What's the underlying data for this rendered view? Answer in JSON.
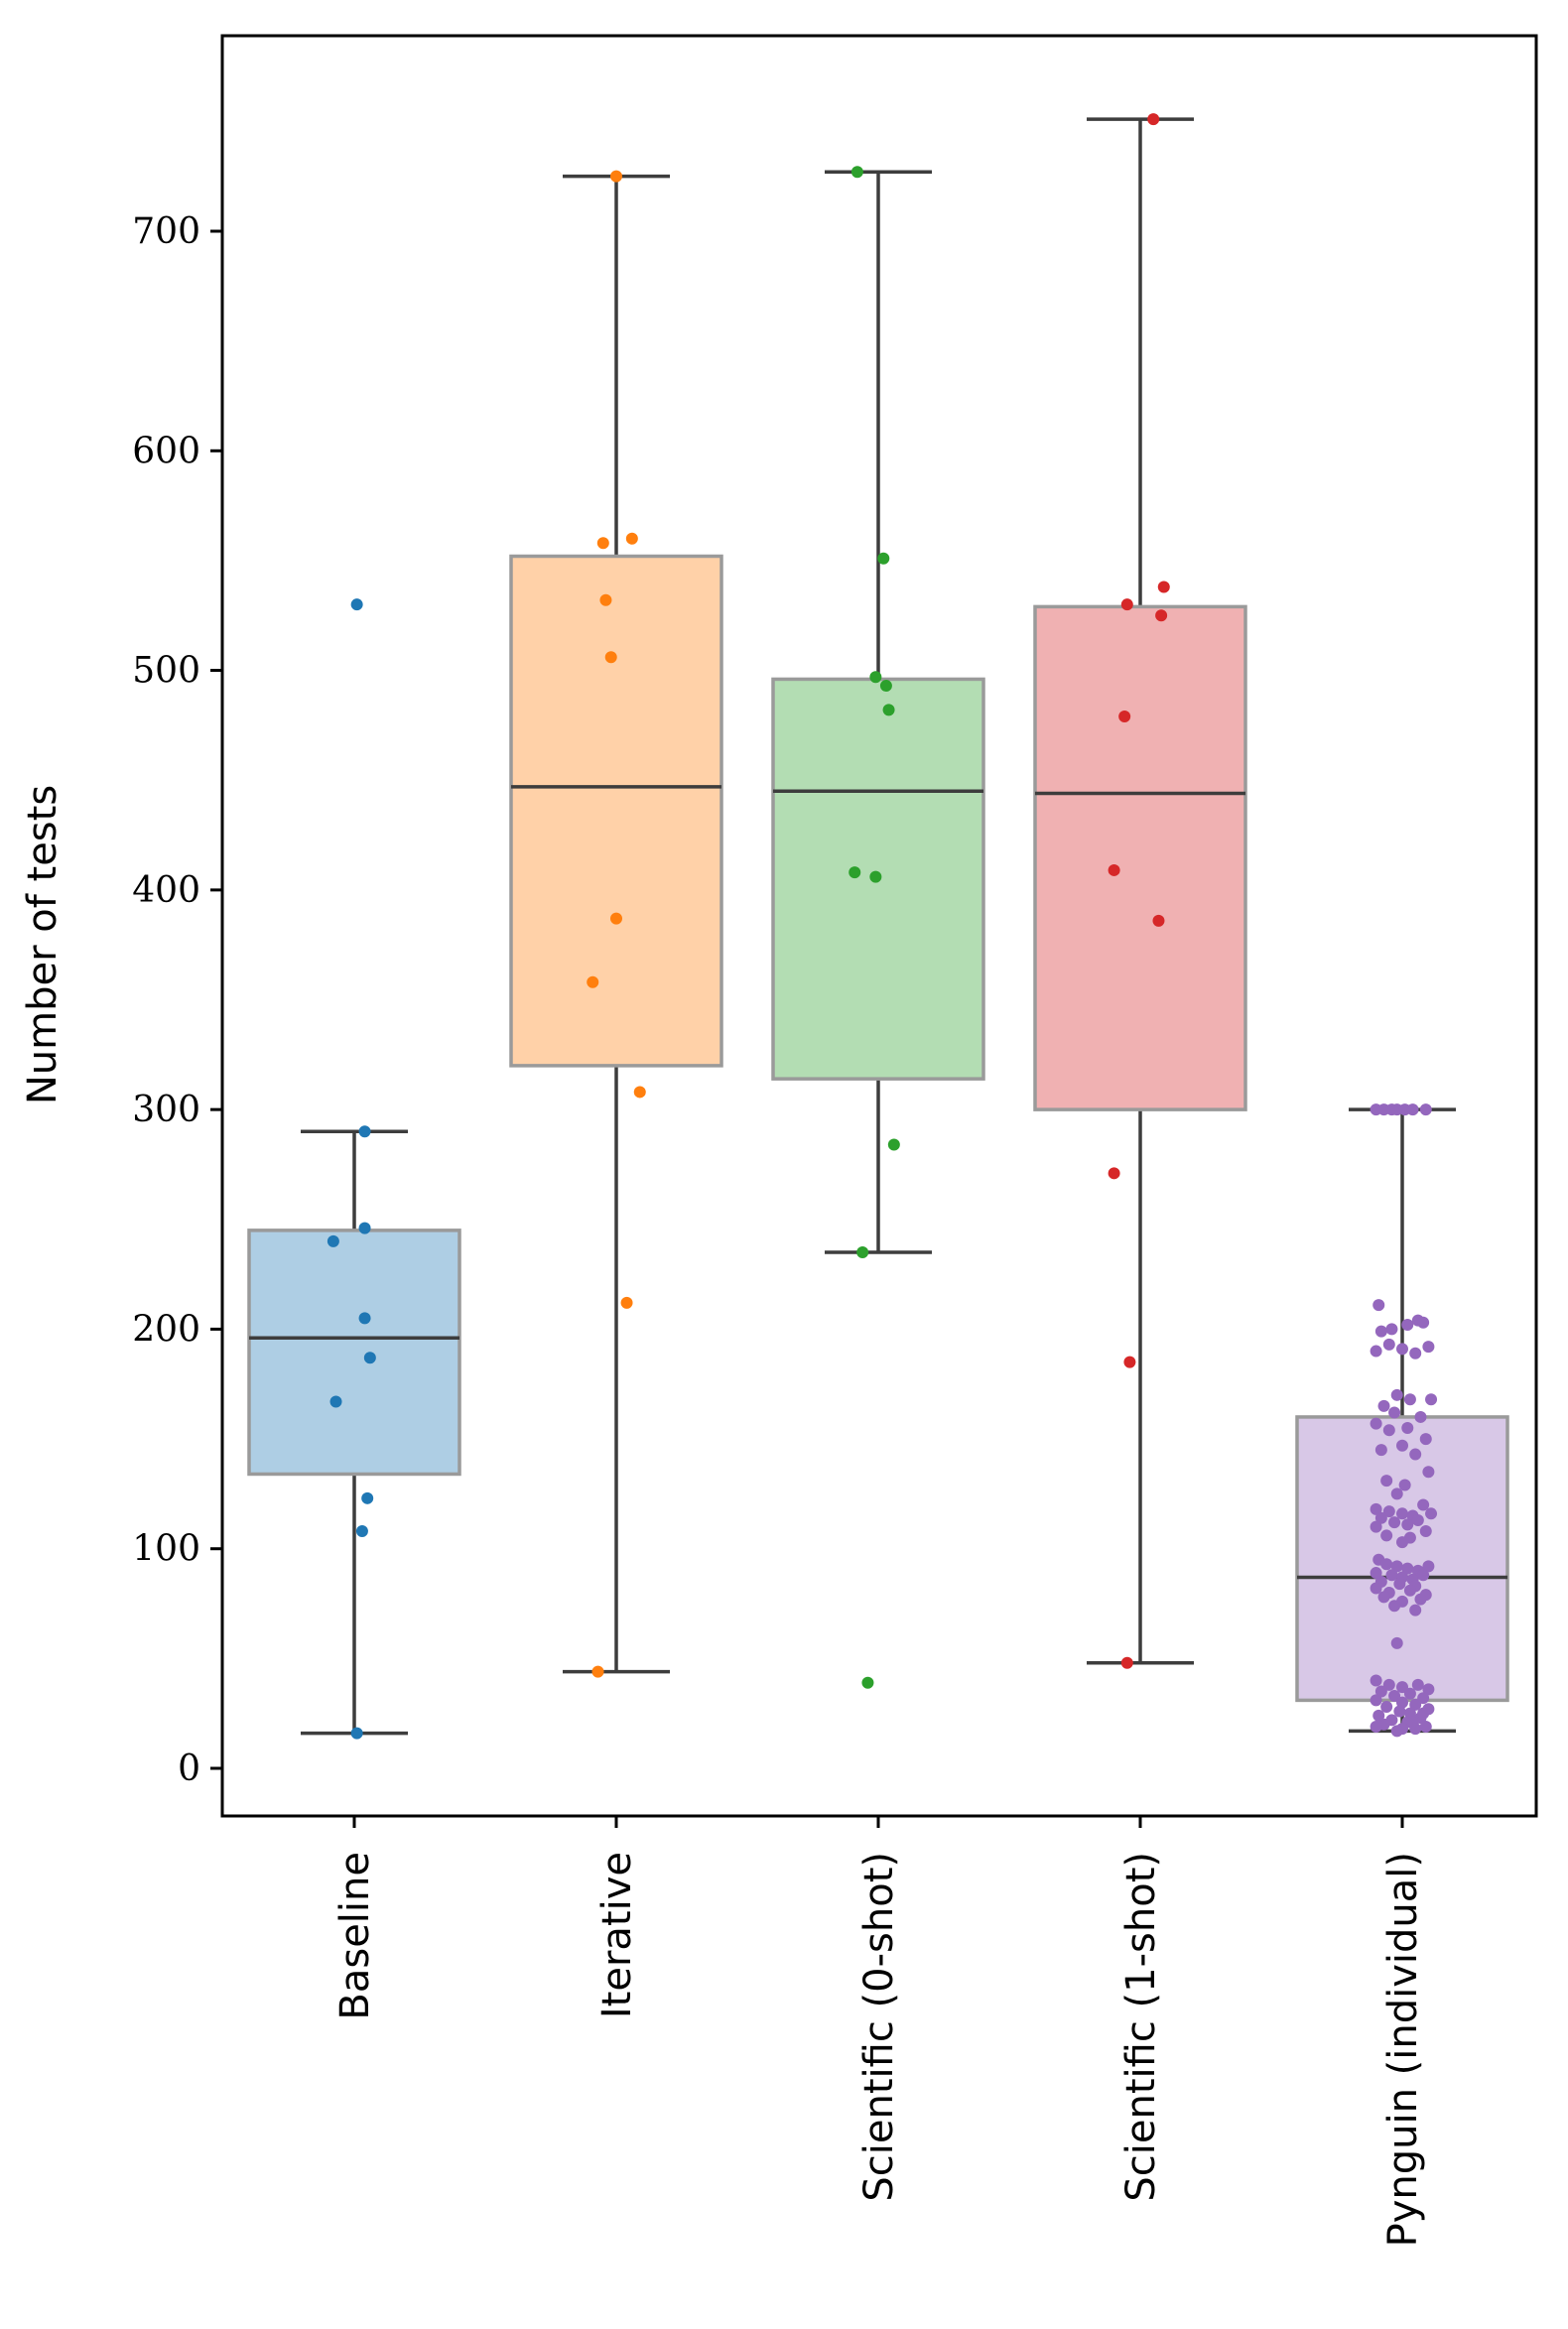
{
  "chart_data": {
    "type": "box",
    "title": "",
    "xlabel": "",
    "ylabel": "Number of tests",
    "ylim": [
      -20,
      790
    ],
    "yticks": [
      0,
      100,
      200,
      300,
      400,
      500,
      600,
      700
    ],
    "categories": [
      "Baseline",
      "Iterative",
      "Scientific (0-shot)",
      "Scientific (1-shot)",
      "Pynguin (individual)"
    ],
    "series": [
      {
        "name": "Baseline",
        "color": "#1f77b4",
        "whisker_low": 16,
        "q1": 134,
        "median": 196,
        "q3": 245,
        "whisker_high": 290,
        "points": [
          [
            0.01,
            530
          ],
          [
            0.04,
            290
          ],
          [
            -0.08,
            240
          ],
          [
            0.04,
            246
          ],
          [
            0.04,
            205
          ],
          [
            0.06,
            187
          ],
          [
            -0.07,
            167
          ],
          [
            0.05,
            123
          ],
          [
            0.03,
            108
          ],
          [
            0.01,
            16
          ]
        ]
      },
      {
        "name": "Iterative",
        "color": "#ff7f0e",
        "whisker_low": 44,
        "q1": 320,
        "median": 447,
        "q3": 552,
        "whisker_high": 725,
        "points": [
          [
            0.0,
            725
          ],
          [
            0.06,
            560
          ],
          [
            -0.05,
            558
          ],
          [
            -0.04,
            532
          ],
          [
            -0.02,
            506
          ],
          [
            0.0,
            387
          ],
          [
            -0.09,
            358
          ],
          [
            0.09,
            308
          ],
          [
            0.04,
            212
          ],
          [
            -0.07,
            44
          ]
        ]
      },
      {
        "name": "Scientific (0-shot)",
        "color": "#2ca02c",
        "whisker_low": 235,
        "q1": 314,
        "median": 445,
        "q3": 496,
        "whisker_high": 727,
        "points": [
          [
            -0.08,
            727
          ],
          [
            0.02,
            551
          ],
          [
            -0.01,
            497
          ],
          [
            0.03,
            493
          ],
          [
            0.04,
            482
          ],
          [
            -0.09,
            408
          ],
          [
            -0.01,
            406
          ],
          [
            0.06,
            284
          ],
          [
            -0.06,
            235
          ],
          [
            -0.04,
            39
          ]
        ]
      },
      {
        "name": "Scientific (1-shot)",
        "color": "#d62728",
        "whisker_low": 48,
        "q1": 300,
        "median": 444,
        "q3": 529,
        "whisker_high": 751,
        "points": [
          [
            0.05,
            751
          ],
          [
            0.09,
            538
          ],
          [
            -0.05,
            530
          ],
          [
            0.08,
            525
          ],
          [
            -0.06,
            479
          ],
          [
            -0.1,
            409
          ],
          [
            0.07,
            386
          ],
          [
            -0.1,
            271
          ],
          [
            -0.04,
            185
          ],
          [
            -0.05,
            48
          ]
        ]
      },
      {
        "name": "Pynguin (individual)",
        "color": "#9467bd",
        "whisker_low": 17,
        "q1": 31,
        "median": 87,
        "q3": 160,
        "whisker_high": 300,
        "points": [
          [
            -0.1,
            300
          ],
          [
            -0.07,
            300
          ],
          [
            -0.04,
            300
          ],
          [
            -0.02,
            300
          ],
          [
            0.01,
            300
          ],
          [
            0.04,
            300
          ],
          [
            0.09,
            300
          ],
          [
            -0.09,
            211
          ],
          [
            0.06,
            204
          ],
          [
            0.02,
            202
          ],
          [
            -0.04,
            200
          ],
          [
            0.08,
            203
          ],
          [
            -0.08,
            199
          ],
          [
            -0.05,
            193
          ],
          [
            0.1,
            192
          ],
          [
            0.0,
            191
          ],
          [
            -0.1,
            190
          ],
          [
            0.05,
            189
          ],
          [
            -0.02,
            170
          ],
          [
            0.03,
            168
          ],
          [
            0.11,
            168
          ],
          [
            -0.07,
            165
          ],
          [
            -0.03,
            162
          ],
          [
            0.07,
            160
          ],
          [
            -0.1,
            157
          ],
          [
            0.02,
            155
          ],
          [
            -0.05,
            154
          ],
          [
            0.09,
            150
          ],
          [
            0.0,
            147
          ],
          [
            -0.08,
            145
          ],
          [
            0.05,
            143
          ],
          [
            0.1,
            135
          ],
          [
            -0.06,
            131
          ],
          [
            0.01,
            129
          ],
          [
            -0.02,
            125
          ],
          [
            0.08,
            120
          ],
          [
            -0.1,
            118
          ],
          [
            -0.05,
            117
          ],
          [
            0.0,
            116
          ],
          [
            0.04,
            115
          ],
          [
            0.11,
            116
          ],
          [
            -0.08,
            114
          ],
          [
            0.06,
            113
          ],
          [
            -0.03,
            112
          ],
          [
            0.02,
            111
          ],
          [
            -0.1,
            110
          ],
          [
            0.09,
            108
          ],
          [
            -0.06,
            106
          ],
          [
            0.03,
            105
          ],
          [
            0.0,
            103
          ],
          [
            -0.09,
            95
          ],
          [
            -0.06,
            93
          ],
          [
            -0.02,
            92
          ],
          [
            0.02,
            91
          ],
          [
            0.06,
            90
          ],
          [
            0.1,
            92
          ],
          [
            -0.1,
            89
          ],
          [
            -0.04,
            88
          ],
          [
            0.0,
            87
          ],
          [
            0.04,
            86
          ],
          [
            0.08,
            88
          ],
          [
            -0.08,
            85
          ],
          [
            -0.01,
            84
          ],
          [
            0.05,
            83
          ],
          [
            -0.1,
            82
          ],
          [
            0.03,
            81
          ],
          [
            -0.05,
            80
          ],
          [
            0.09,
            79
          ],
          [
            -0.07,
            78
          ],
          [
            0.07,
            77
          ],
          [
            0.0,
            76
          ],
          [
            -0.03,
            74
          ],
          [
            0.05,
            72
          ],
          [
            -0.02,
            57
          ],
          [
            -0.1,
            40
          ],
          [
            -0.05,
            38
          ],
          [
            0.0,
            37
          ],
          [
            0.06,
            38
          ],
          [
            0.1,
            36
          ],
          [
            -0.08,
            35
          ],
          [
            0.03,
            34
          ],
          [
            -0.03,
            33
          ],
          [
            0.08,
            32
          ],
          [
            -0.1,
            31
          ],
          [
            0.0,
            30
          ],
          [
            0.05,
            29
          ],
          [
            -0.06,
            28
          ],
          [
            0.1,
            27
          ],
          [
            -0.01,
            26
          ],
          [
            0.03,
            25
          ],
          [
            -0.09,
            24
          ],
          [
            0.07,
            23
          ],
          [
            -0.04,
            22
          ],
          [
            0.02,
            21
          ],
          [
            -0.07,
            20
          ],
          [
            0.09,
            19
          ],
          [
            0.0,
            18
          ],
          [
            -0.02,
            17
          ],
          [
            0.05,
            18
          ],
          [
            -0.1,
            19
          ],
          [
            0.04,
            21
          ],
          [
            0.08,
            25
          ]
        ]
      }
    ]
  }
}
